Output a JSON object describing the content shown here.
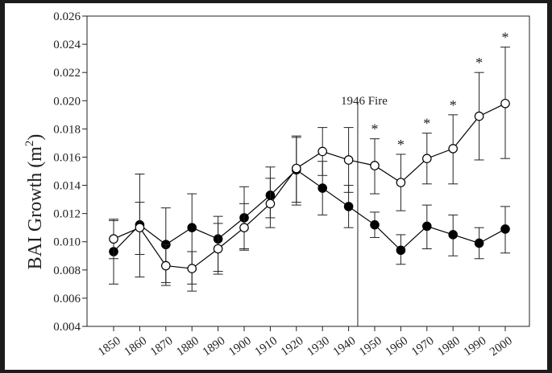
{
  "chart_data": {
    "type": "line",
    "title": "",
    "xlabel": "",
    "ylabel": "BAI Growth (m",
    "ylabel_sup": "2",
    "ylabel_close": ")",
    "categories": [
      "1850",
      "1860",
      "1870",
      "1880",
      "1890",
      "1900",
      "1910",
      "1920",
      "1930",
      "1940",
      "1950",
      "1960",
      "1970",
      "1980",
      "1990",
      "2000"
    ],
    "yticks": [
      "0.004",
      "0.006",
      "0.008",
      "0.010",
      "0.012",
      "0.014",
      "0.016",
      "0.018",
      "0.020",
      "0.022",
      "0.024",
      "0.026"
    ],
    "ylim": [
      0.004,
      0.026
    ],
    "grid": false,
    "legend": "none",
    "series": [
      {
        "marker": "filled-circle",
        "color": "#000000",
        "values": [
          0.0093,
          0.0112,
          0.0098,
          0.011,
          0.0102,
          0.0117,
          0.0133,
          0.0151,
          0.0138,
          0.0125,
          0.0112,
          0.0094,
          0.0111,
          0.0105,
          0.0099,
          0.0109
        ],
        "err_low": [
          0.007,
          0.0075,
          0.0071,
          0.0065,
          0.0079,
          0.0095,
          0.0117,
          0.0126,
          0.0119,
          0.011,
          0.0103,
          0.0084,
          0.0095,
          0.009,
          0.0088,
          0.0092
        ],
        "err_high": [
          0.0116,
          0.0148,
          0.0124,
          0.0134,
          0.0118,
          0.0139,
          0.0153,
          0.0175,
          0.0157,
          0.014,
          0.0121,
          0.0105,
          0.0126,
          0.0119,
          0.011,
          0.0125
        ]
      },
      {
        "marker": "open-circle",
        "color": "#000000",
        "values": [
          0.0102,
          0.011,
          0.0083,
          0.0081,
          0.0095,
          0.011,
          0.0127,
          0.0152,
          0.0164,
          0.0158,
          0.0154,
          0.0142,
          0.0159,
          0.0166,
          0.0189,
          0.0198
        ],
        "err_low": [
          0.0088,
          0.0091,
          0.0069,
          0.007,
          0.0077,
          0.0094,
          0.011,
          0.0128,
          0.0147,
          0.0135,
          0.0134,
          0.0122,
          0.0141,
          0.0141,
          0.0158,
          0.0159
        ],
        "err_high": [
          0.0115,
          0.0128,
          0.0098,
          0.0093,
          0.0113,
          0.0127,
          0.0145,
          0.0174,
          0.0181,
          0.0181,
          0.0173,
          0.0162,
          0.0177,
          0.019,
          0.022,
          0.0238
        ]
      }
    ],
    "event_line": {
      "x": 1943.5,
      "label": "1946 Fire"
    },
    "significance_marks": {
      "symbol": "*",
      "categories": [
        "1950",
        "1960",
        "1970",
        "1980",
        "1990",
        "2000"
      ]
    }
  }
}
